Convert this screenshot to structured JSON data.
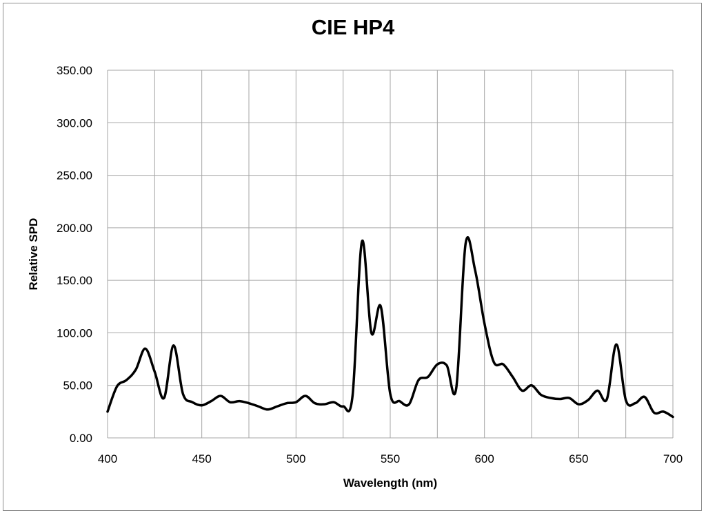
{
  "chart_data": {
    "type": "line",
    "title": "CIE HP4",
    "xlabel": "Wavelength (nm)",
    "ylabel": "Relative SPD",
    "xlim": [
      400,
      700
    ],
    "ylim": [
      0,
      350
    ],
    "x_ticks": [
      400,
      450,
      500,
      550,
      600,
      650,
      700
    ],
    "x_tick_labels": [
      "400",
      "450",
      "500",
      "550",
      "600",
      "650",
      "700"
    ],
    "y_ticks": [
      0,
      50,
      100,
      150,
      200,
      250,
      300,
      350
    ],
    "y_tick_labels": [
      "0.00",
      "50.00",
      "100.00",
      "150.00",
      "200.00",
      "250.00",
      "300.00",
      "350.00"
    ],
    "x_gridlines": [
      400,
      425,
      450,
      475,
      500,
      525,
      550,
      575,
      600,
      625,
      650,
      675,
      700
    ],
    "grid": true,
    "legend": "none",
    "line_color": "#000000",
    "series": [
      {
        "x": [
          400,
          405,
          410,
          415,
          420,
          425,
          430,
          435,
          440,
          445,
          450,
          455,
          460,
          465,
          470,
          475,
          480,
          485,
          490,
          495,
          500,
          505,
          510,
          515,
          520,
          525,
          530,
          535,
          540,
          545,
          550,
          555,
          560,
          565,
          570,
          575,
          580,
          585,
          590,
          595,
          600,
          605,
          610,
          615,
          620,
          625,
          630,
          635,
          640,
          645,
          650,
          655,
          660,
          665,
          670,
          675,
          680,
          685,
          690,
          695,
          700
        ],
        "values": [
          25,
          49,
          55,
          65,
          85,
          63,
          38,
          88,
          42,
          34,
          31,
          35,
          40,
          34,
          35,
          33,
          30,
          27,
          30,
          33,
          34,
          40,
          33,
          32,
          34,
          30,
          40,
          187,
          100,
          125,
          42,
          35,
          32,
          55,
          58,
          70,
          69,
          47,
          185,
          160,
          109,
          72,
          70,
          58,
          45,
          50,
          41,
          38,
          37,
          38,
          32,
          36,
          45,
          37,
          89,
          36,
          33,
          39,
          24,
          25,
          20
        ]
      }
    ]
  }
}
